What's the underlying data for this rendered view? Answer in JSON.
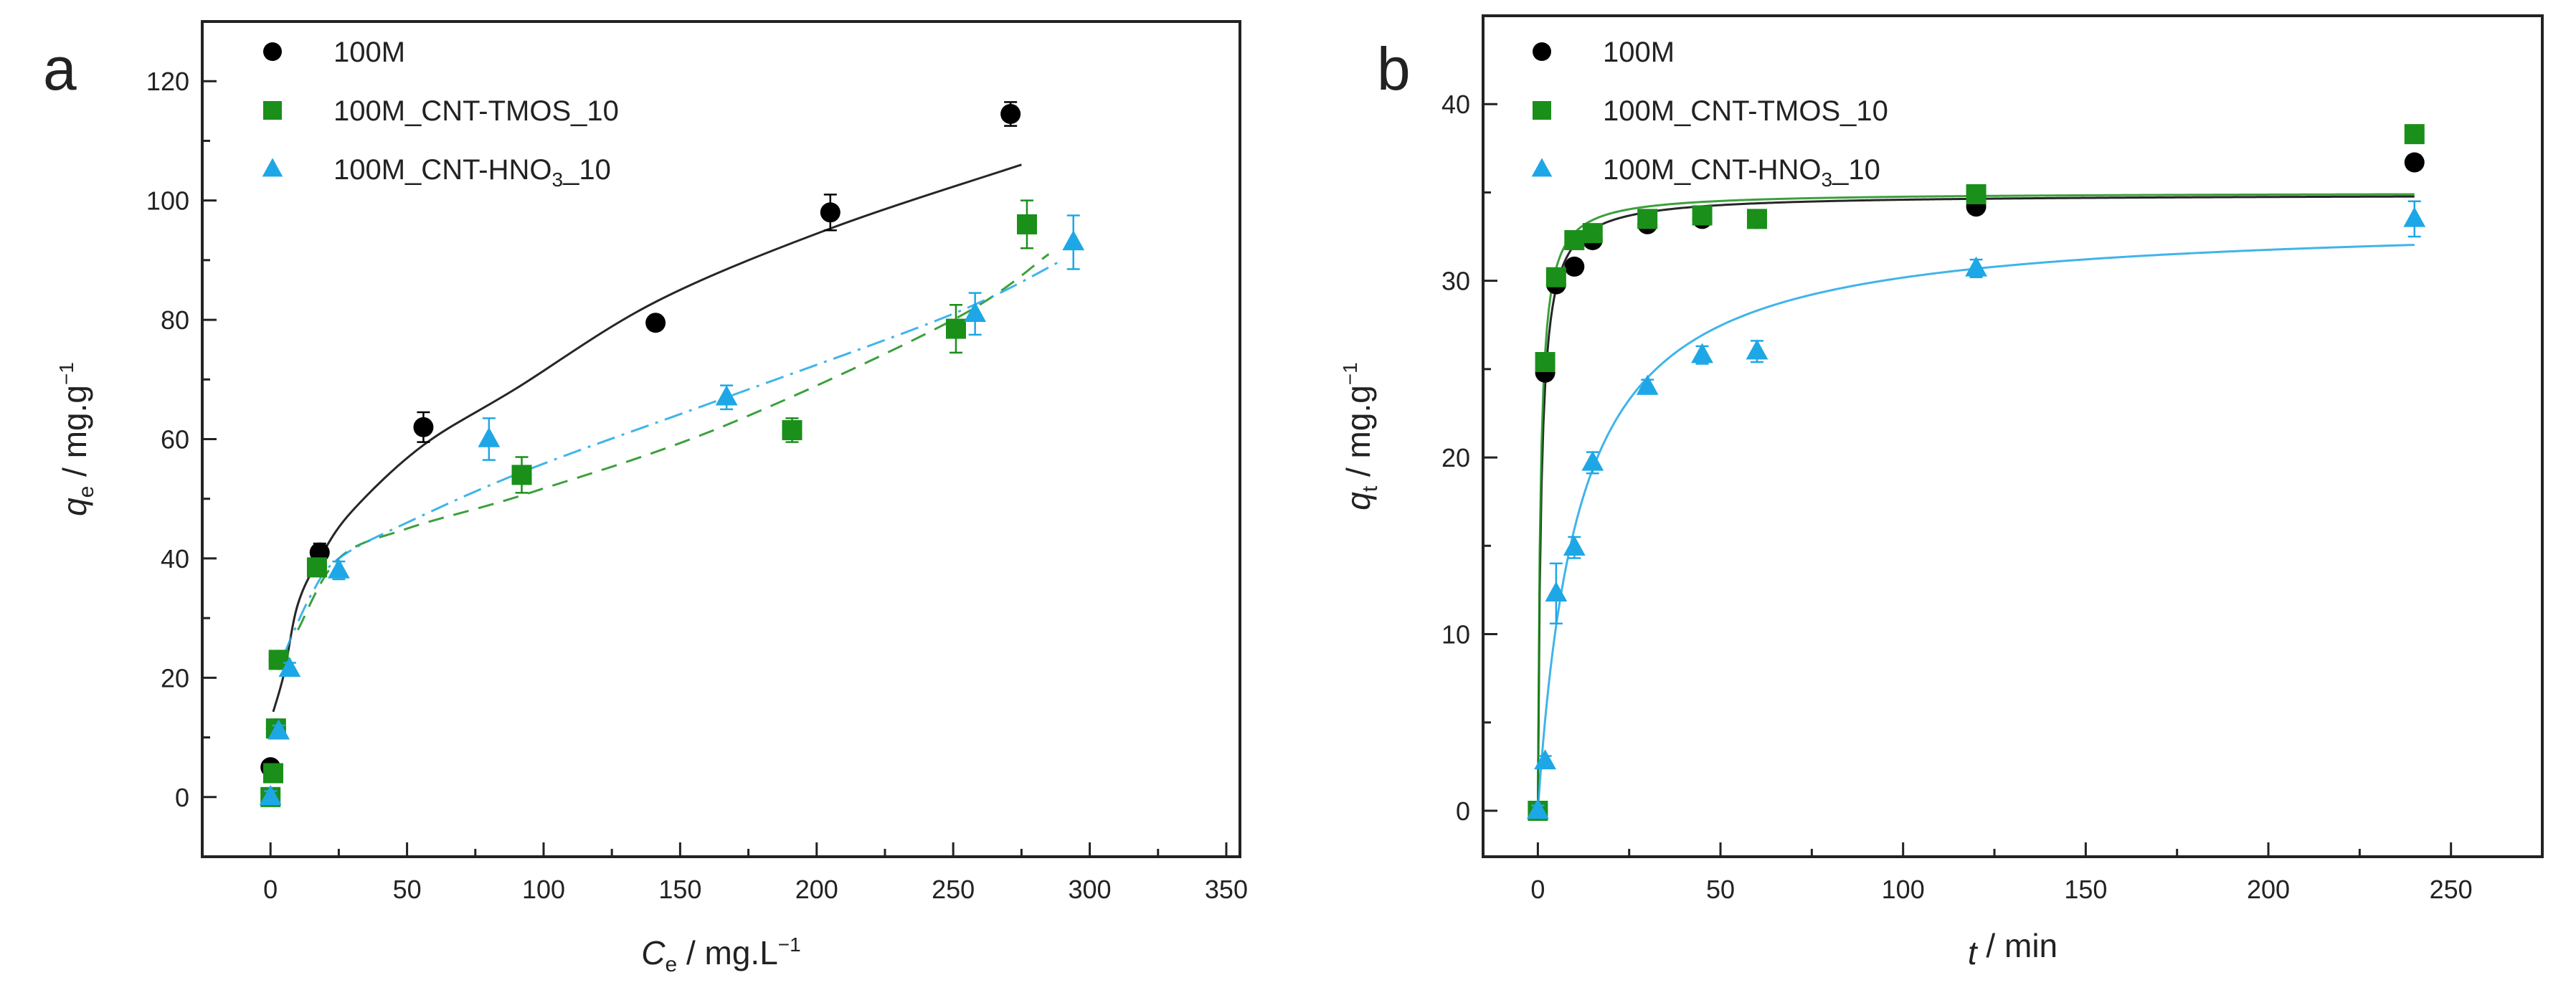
{
  "chart_data": [
    {
      "type": "scatter",
      "panel_label": "a",
      "xlabel": {
        "var": "C",
        "sub": "e",
        "unit": " / mg.L",
        "sup": "−1"
      },
      "ylabel": {
        "var": "q",
        "sub": "e",
        "unit": " / mg.g",
        "sup": "−1"
      },
      "xlim": [
        -25,
        355
      ],
      "ylim": [
        -10,
        130
      ],
      "xticks": [
        0,
        50,
        100,
        150,
        200,
        250,
        300,
        350
      ],
      "yticks": [
        0,
        20,
        40,
        60,
        80,
        100,
        120
      ],
      "grid": false,
      "legend_position": "top-left",
      "series": [
        {
          "name": "100M",
          "color": "#000000",
          "marker": "circle",
          "fit_style": "solid",
          "x": [
            0,
            2,
            3,
            18,
            56,
            141,
            205,
            271
          ],
          "y": [
            5,
            11.5,
            23,
            41,
            62,
            79.5,
            98,
            114.5
          ],
          "yerr": [
            1,
            1,
            1,
            1.5,
            2.5,
            1,
            3,
            2
          ],
          "fit_x": [
            1,
            5,
            10,
            18,
            30,
            56,
            90,
            141,
            205,
            275
          ],
          "fit_y": [
            14.3,
            20.8,
            32.3,
            40,
            48,
            59,
            68.5,
            83,
            95.3,
            106
          ]
        },
        {
          "name": "100M_CNT-TMOS_10",
          "color": "#1a8f1a",
          "marker": "square",
          "fit_style": "dashed",
          "x": [
            0,
            1,
            2,
            3,
            17,
            92,
            191,
            251,
            277
          ],
          "y": [
            0,
            4,
            11.5,
            23,
            38.5,
            54,
            61.5,
            78.5,
            96
          ],
          "yerr": [
            1,
            1,
            1,
            1,
            1.5,
            3,
            2,
            4,
            4
          ],
          "fit_x": [
            10,
            25,
            50,
            95,
            165,
            250,
            285
          ],
          "fit_y": [
            28,
            40,
            45,
            51,
            62,
            80,
            91
          ]
        },
        {
          "name": "100M_CNT-HNO3_10",
          "color": "#1ea7e6",
          "marker": "triangle",
          "fit_style": "dashdot",
          "x": [
            0,
            3,
            7,
            25,
            80,
            167,
            258,
            294
          ],
          "y": [
            0,
            11,
            21.5,
            38,
            60,
            67,
            81,
            93
          ],
          "yerr": [
            1,
            1,
            1,
            1.5,
            3.5,
            2,
            3.5,
            4.5
          ],
          "fit_x": [
            5,
            15,
            25,
            50,
            95,
            167,
            250,
            290
          ],
          "fit_y": [
            24,
            34,
            40,
            46,
            55,
            67,
            81,
            90
          ]
        }
      ]
    },
    {
      "type": "scatter",
      "panel_label": "b",
      "xlabel": {
        "var": "t",
        "sub": "",
        "unit": " / min",
        "sup": ""
      },
      "ylabel": {
        "var": "q",
        "sub": "t",
        "unit": " / mg.g",
        "sup": "−1"
      },
      "xlim": [
        -15,
        275
      ],
      "ylim": [
        -2.6,
        45
      ],
      "xticks": [
        0,
        50,
        100,
        150,
        200,
        250
      ],
      "yticks": [
        0,
        10,
        20,
        30,
        40
      ],
      "grid": false,
      "legend_position": "top-left",
      "series": [
        {
          "name": "100M",
          "color": "#000000",
          "marker": "circle",
          "fit_style": "solid",
          "fit_qe": 34.9,
          "fit_half_time": 0.9,
          "x": [
            0,
            2,
            5,
            10,
            15,
            30,
            45,
            60,
            120,
            240
          ],
          "y": [
            0,
            24.8,
            29.8,
            30.8,
            32.3,
            33.2,
            33.5,
            33.5,
            34.2,
            36.7
          ],
          "yerr": [
            0.3,
            0.4,
            0.4,
            0.4,
            0.4,
            0.4,
            0.4,
            0.4,
            0.4,
            0.4
          ]
        },
        {
          "name": "100M_CNT-TMOS_10",
          "color": "#1a8f1a",
          "marker": "square",
          "fit_style": "solid",
          "fit_qe": 35.0,
          "fit_half_time": 0.7,
          "x": [
            0,
            2,
            5,
            10,
            15,
            30,
            45,
            60,
            120,
            240
          ],
          "y": [
            0,
            25.4,
            30.2,
            32.3,
            32.7,
            33.5,
            33.7,
            33.5,
            34.9,
            38.3
          ],
          "yerr": [
            0.3,
            0.4,
            0.4,
            0.4,
            0.4,
            0.4,
            0.4,
            0.4,
            0.4,
            0.4
          ]
        },
        {
          "name": "100M_CNT-HNO3_10",
          "color": "#1ea7e6",
          "marker": "triangle",
          "fit_style": "solid",
          "fit_qe": 33.5,
          "fit_half_time": 11,
          "x": [
            0,
            2,
            5,
            10,
            15,
            30,
            45,
            60,
            120,
            240
          ],
          "y": [
            0,
            2.8,
            12.3,
            14.9,
            19.7,
            24,
            25.8,
            26,
            30.7,
            33.5
          ],
          "yerr": [
            0.3,
            0.3,
            1.7,
            0.6,
            0.6,
            0.4,
            0.5,
            0.6,
            0.5,
            1
          ]
        }
      ]
    }
  ]
}
